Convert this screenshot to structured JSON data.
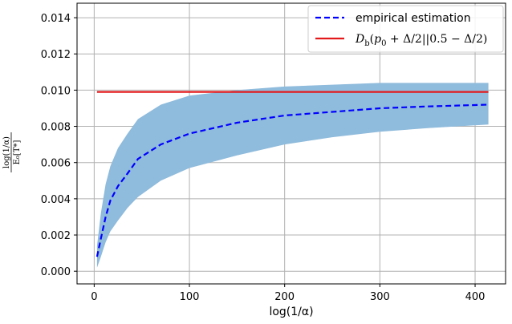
{
  "chart_data": {
    "type": "line",
    "xlabel": "log(1/α)",
    "ylabel_num": "log(1/α)",
    "ylabel_den": "E₀[T*]",
    "xlim": [
      -18,
      432
    ],
    "ylim": [
      -0.0007,
      0.0148
    ],
    "xticks": [
      0,
      100,
      200,
      300,
      400
    ],
    "xtick_labels": [
      "0",
      "100",
      "200",
      "300",
      "400"
    ],
    "yticks": [
      0.0,
      0.002,
      0.004,
      0.006,
      0.008,
      0.01,
      0.012,
      0.014
    ],
    "ytick_labels": [
      "0.000",
      "0.002",
      "0.004",
      "0.006",
      "0.008",
      "0.010",
      "0.012",
      "0.014"
    ],
    "grid": true,
    "legend_position": "top-right",
    "series": [
      {
        "name": "empirical estimation",
        "style": "dashed",
        "color": "#0000ff",
        "x": [
          3,
          7,
          12,
          17,
          25,
          35,
          46,
          70,
          100,
          150,
          200,
          250,
          300,
          350,
          414
        ],
        "y": [
          0.0008,
          0.0018,
          0.003,
          0.0039,
          0.0047,
          0.0054,
          0.0062,
          0.007,
          0.0076,
          0.0082,
          0.0086,
          0.0088,
          0.009,
          0.0091,
          0.0092
        ]
      },
      {
        "name": "D_b(p_0 + Δ/2||0.5 − Δ/2)",
        "name_parts": {
          "d": "D",
          "b": "b",
          "open": "(",
          "p": "p",
          "zero": "0",
          "rest": " + Δ/2||0.5 − Δ/2)"
        },
        "style": "solid",
        "color": "#e31a1c",
        "x": [
          3,
          414
        ],
        "y": [
          0.0099,
          0.0099
        ]
      }
    ],
    "band": {
      "color": "#8fbbdc",
      "x": [
        3,
        7,
        12,
        17,
        25,
        35,
        46,
        70,
        100,
        150,
        200,
        250,
        300,
        350,
        414
      ],
      "lower": [
        0.0002,
        0.0008,
        0.0016,
        0.0022,
        0.0028,
        0.0035,
        0.0041,
        0.005,
        0.0057,
        0.0064,
        0.007,
        0.0074,
        0.0077,
        0.0079,
        0.0081
      ],
      "upper": [
        0.0014,
        0.0032,
        0.0048,
        0.0058,
        0.0068,
        0.0076,
        0.0084,
        0.0092,
        0.0097,
        0.01,
        0.0102,
        0.0103,
        0.0104,
        0.0104,
        0.0104
      ]
    }
  }
}
